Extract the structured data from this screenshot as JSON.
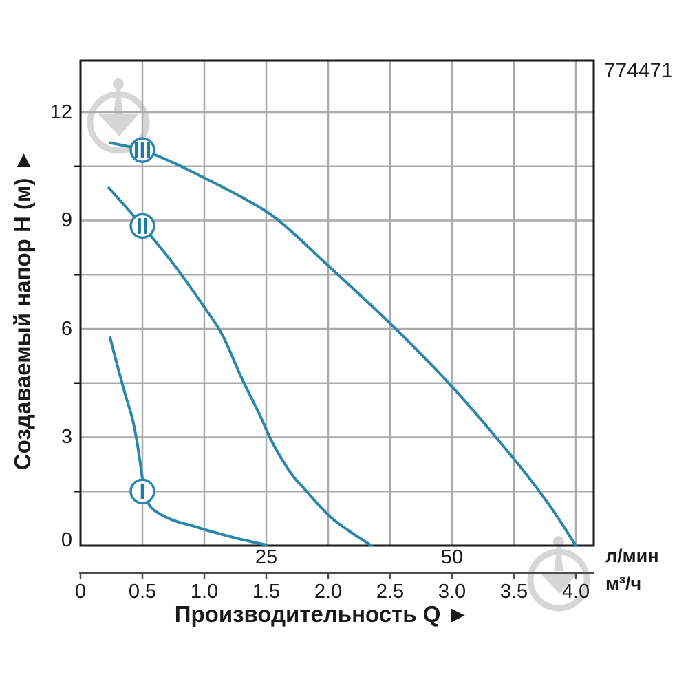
{
  "product_code": "774471",
  "colors": {
    "curve": "#2b86ac",
    "marker_fill": "#ffffff",
    "marker_bar": "#1e7ba2",
    "grid": "#ababab",
    "border": "#1a1a1a",
    "secondary_axis": "#4d4d4d",
    "watermark": "#d6d6d6",
    "text": "#1a1a1a"
  },
  "y_axis": {
    "title": "Создаваемый напор H (м) ►",
    "ticks": [
      {
        "label": "12"
      },
      {
        "label": "9"
      },
      {
        "label": "6"
      },
      {
        "label": "3"
      },
      {
        "label": "0"
      }
    ]
  },
  "x_axis": {
    "title": "Производительность Q ►",
    "lmin_unit": "л/мин",
    "m3h_unit": "м³/ч",
    "lmin_ticks": [
      {
        "label": "25"
      },
      {
        "label": "50"
      }
    ],
    "m3h_ticks": [
      {
        "label": "0"
      },
      {
        "label": "0.5"
      },
      {
        "label": "1.0"
      },
      {
        "label": "1.5"
      },
      {
        "label": "2.0"
      },
      {
        "label": "2.5"
      },
      {
        "label": "3.0"
      },
      {
        "label": "3.5"
      },
      {
        "label": "4.0"
      }
    ]
  },
  "chart_data": {
    "type": "line",
    "title": "",
    "xlabel": "Производительность Q",
    "ylabel": "Создаваемый напор H (м)",
    "x_units": [
      "м³/ч",
      "л/мин"
    ],
    "x_range_m3h": [
      0,
      4.15
    ],
    "y_range_m": [
      0,
      13.4
    ],
    "x_ticks_m3h": [
      0,
      0.5,
      1.0,
      1.5,
      2.0,
      2.5,
      3.0,
      3.5,
      4.0
    ],
    "x_ticks_lmin": [
      25,
      50
    ],
    "y_ticks_m": [
      0,
      3,
      6,
      9,
      12
    ],
    "grid": "on",
    "legend_position": "markers-on-curves",
    "series": [
      {
        "name": "I",
        "marker": {
          "q": 0.5,
          "h": 1.5
        },
        "points": [
          [
            0.24,
            5.75
          ],
          [
            0.3,
            4.95
          ],
          [
            0.36,
            4.2
          ],
          [
            0.42,
            3.5
          ],
          [
            0.46,
            2.8
          ],
          [
            0.49,
            2.1
          ],
          [
            0.52,
            1.45
          ],
          [
            0.56,
            1.1
          ],
          [
            0.63,
            0.9
          ],
          [
            0.75,
            0.7
          ],
          [
            0.9,
            0.55
          ],
          [
            1.1,
            0.35
          ],
          [
            1.3,
            0.17
          ],
          [
            1.5,
            0.02
          ]
        ]
      },
      {
        "name": "II",
        "marker": {
          "q": 0.5,
          "h": 8.85
        },
        "points": [
          [
            0.23,
            9.9
          ],
          [
            0.5,
            8.85
          ],
          [
            0.75,
            7.8
          ],
          [
            1.0,
            6.6
          ],
          [
            1.15,
            5.8
          ],
          [
            1.3,
            4.65
          ],
          [
            1.45,
            3.6
          ],
          [
            1.55,
            2.85
          ],
          [
            1.7,
            2.0
          ],
          [
            1.8,
            1.6
          ],
          [
            2.0,
            0.85
          ],
          [
            2.15,
            0.45
          ],
          [
            2.35,
            0.0
          ]
        ]
      },
      {
        "name": "III",
        "marker": {
          "q": 0.5,
          "h": 10.95
        },
        "points": [
          [
            0.24,
            11.15
          ],
          [
            0.5,
            10.95
          ],
          [
            0.75,
            10.6
          ],
          [
            0.9,
            10.35
          ],
          [
            1.3,
            9.65
          ],
          [
            1.6,
            9.0
          ],
          [
            2.0,
            7.75
          ],
          [
            2.5,
            6.15
          ],
          [
            3.0,
            4.4
          ],
          [
            3.5,
            2.4
          ],
          [
            3.78,
            1.15
          ],
          [
            4.0,
            0.0
          ]
        ]
      }
    ]
  }
}
